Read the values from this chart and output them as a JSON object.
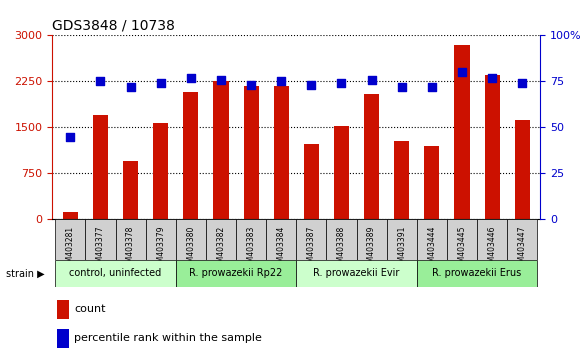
{
  "title": "GDS3848 / 10738",
  "samples": [
    "GSM403281",
    "GSM403377",
    "GSM403378",
    "GSM403379",
    "GSM403380",
    "GSM403382",
    "GSM403383",
    "GSM403384",
    "GSM403387",
    "GSM403388",
    "GSM403389",
    "GSM403391",
    "GSM403444",
    "GSM403445",
    "GSM403446",
    "GSM403447"
  ],
  "counts": [
    120,
    1700,
    950,
    1580,
    2080,
    2250,
    2170,
    2180,
    1230,
    1530,
    2050,
    1280,
    1200,
    2850,
    2350,
    1620
  ],
  "percentiles": [
    45,
    75,
    72,
    74,
    77,
    76,
    73,
    75,
    73,
    74,
    76,
    72,
    72,
    80,
    77,
    74
  ],
  "bar_color": "#cc1100",
  "dot_color": "#0000cc",
  "left_yticks": [
    0,
    750,
    1500,
    2250,
    3000
  ],
  "right_yticks": [
    0,
    25,
    50,
    75,
    100
  ],
  "ylim_left": [
    0,
    3000
  ],
  "ylim_right": [
    0,
    100
  ],
  "groups": [
    {
      "label": "control, uninfected",
      "start": 0,
      "end": 3,
      "color": "#ccffcc"
    },
    {
      "label": "R. prowazekii Rp22",
      "start": 4,
      "end": 7,
      "color": "#99ee99"
    },
    {
      "label": "R. prowazekii Evir",
      "start": 8,
      "end": 11,
      "color": "#ccffcc"
    },
    {
      "label": "R. prowazekii Erus",
      "start": 12,
      "end": 15,
      "color": "#99ee99"
    }
  ],
  "strain_label": "strain",
  "legend_count": "count",
  "legend_percentile": "percentile rank within the sample",
  "left_axis_color": "#cc1100",
  "right_axis_color": "#0000cc",
  "bg_color": "#ffffff",
  "plot_bg": "#ffffff",
  "grid_color": "#000000",
  "bar_width": 0.5
}
